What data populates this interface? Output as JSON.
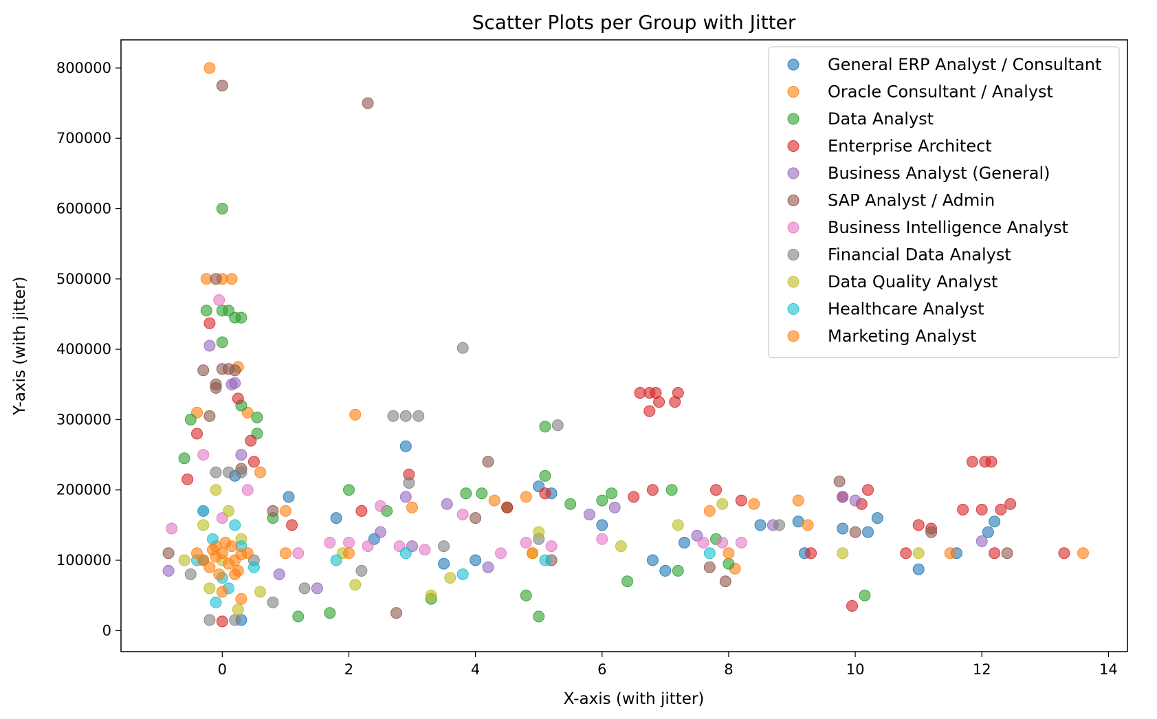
{
  "chart_data": {
    "type": "scatter",
    "title": "Scatter Plots per Group with Jitter",
    "xlabel": "X-axis (with jitter)",
    "ylabel": "Y-axis (with jitter)",
    "xlim": [
      -1.6,
      14.3
    ],
    "ylim": [
      -30000,
      840000
    ],
    "xticks": [
      0,
      2,
      4,
      6,
      8,
      10,
      12,
      14
    ],
    "yticks": [
      0,
      100000,
      200000,
      300000,
      400000,
      500000,
      600000,
      700000,
      800000
    ],
    "grid": false,
    "legend_position": "top-right",
    "marker_opacity": 0.6,
    "series": [
      {
        "name": "General ERP Analyst / Consultant",
        "color": "#1f77b4",
        "points": [
          [
            0.3,
            15000
          ],
          [
            1.05,
            190000
          ],
          [
            2.9,
            262000
          ],
          [
            4.0,
            100000
          ],
          [
            5.2,
            195000
          ],
          [
            6.0,
            150000
          ],
          [
            7.0,
            85000
          ],
          [
            8.5,
            150000
          ],
          [
            9.1,
            155000
          ],
          [
            9.8,
            145000
          ],
          [
            10.35,
            160000
          ],
          [
            11.0,
            87000
          ],
          [
            11.6,
            110000
          ],
          [
            12.1,
            140000
          ],
          [
            -0.3,
            100000
          ],
          [
            1.8,
            160000
          ],
          [
            3.5,
            95000
          ],
          [
            5.0,
            205000
          ],
          [
            6.8,
            100000
          ],
          [
            7.3,
            125000
          ],
          [
            9.2,
            110000
          ],
          [
            10.2,
            140000
          ],
          [
            12.2,
            155000
          ],
          [
            0.2,
            220000
          ],
          [
            2.4,
            130000
          ]
        ]
      },
      {
        "name": "Oracle Consultant / Analyst",
        "color": "#ff7f0e",
        "points": [
          [
            -0.2,
            800000
          ],
          [
            -0.25,
            500000
          ],
          [
            0.0,
            500000
          ],
          [
            0.15,
            500000
          ],
          [
            0.25,
            375000
          ],
          [
            -0.4,
            310000
          ],
          [
            0.4,
            310000
          ],
          [
            0.6,
            225000
          ],
          [
            2.1,
            307000
          ],
          [
            1.0,
            170000
          ],
          [
            4.8,
            190000
          ],
          [
            4.3,
            185000
          ],
          [
            7.7,
            170000
          ],
          [
            8.4,
            180000
          ],
          [
            9.1,
            185000
          ],
          [
            9.25,
            150000
          ],
          [
            13.6,
            110000
          ],
          [
            11.5,
            110000
          ],
          [
            8.1,
            88000
          ],
          [
            3.0,
            175000
          ],
          [
            -0.1,
            120000
          ],
          [
            0.2,
            80000
          ]
        ]
      },
      {
        "name": "Data Analyst",
        "color": "#2ca02c",
        "points": [
          [
            0.0,
            600000
          ],
          [
            -0.25,
            455000
          ],
          [
            0.0,
            455000
          ],
          [
            0.1,
            455000
          ],
          [
            0.2,
            445000
          ],
          [
            0.3,
            445000
          ],
          [
            0.0,
            410000
          ],
          [
            0.55,
            303000
          ],
          [
            0.55,
            280000
          ],
          [
            -0.6,
            245000
          ],
          [
            5.1,
            290000
          ],
          [
            5.1,
            220000
          ],
          [
            2.0,
            200000
          ],
          [
            3.85,
            195000
          ],
          [
            4.1,
            195000
          ],
          [
            6.15,
            195000
          ],
          [
            7.1,
            200000
          ],
          [
            6.4,
            70000
          ],
          [
            5.0,
            20000
          ],
          [
            10.15,
            50000
          ],
          [
            1.2,
            20000
          ],
          [
            1.7,
            25000
          ],
          [
            7.2,
            85000
          ],
          [
            8.0,
            95000
          ],
          [
            0.8,
            160000
          ],
          [
            2.6,
            170000
          ],
          [
            4.5,
            175000
          ],
          [
            5.5,
            180000
          ],
          [
            6.0,
            185000
          ],
          [
            -0.5,
            300000
          ],
          [
            0.3,
            320000
          ],
          [
            7.8,
            130000
          ],
          [
            3.3,
            45000
          ],
          [
            4.8,
            50000
          ]
        ]
      },
      {
        "name": "Enterprise Architect",
        "color": "#d62728",
        "points": [
          [
            -0.2,
            437000
          ],
          [
            -0.4,
            280000
          ],
          [
            0.25,
            330000
          ],
          [
            0.45,
            270000
          ],
          [
            6.6,
            338000
          ],
          [
            6.75,
            338000
          ],
          [
            6.85,
            338000
          ],
          [
            6.9,
            325000
          ],
          [
            6.75,
            312000
          ],
          [
            7.15,
            325000
          ],
          [
            7.2,
            338000
          ],
          [
            2.95,
            222000
          ],
          [
            9.95,
            35000
          ],
          [
            11.85,
            240000
          ],
          [
            12.05,
            240000
          ],
          [
            12.15,
            240000
          ],
          [
            11.7,
            172000
          ],
          [
            12.0,
            172000
          ],
          [
            12.3,
            172000
          ],
          [
            12.45,
            180000
          ],
          [
            13.3,
            110000
          ],
          [
            10.2,
            200000
          ],
          [
            9.8,
            190000
          ],
          [
            10.1,
            180000
          ],
          [
            11.0,
            150000
          ],
          [
            11.2,
            145000
          ],
          [
            6.5,
            190000
          ],
          [
            6.8,
            200000
          ],
          [
            7.8,
            200000
          ],
          [
            8.2,
            185000
          ],
          [
            4.5,
            175000
          ],
          [
            5.1,
            195000
          ],
          [
            -0.55,
            215000
          ],
          [
            0.5,
            240000
          ],
          [
            1.1,
            150000
          ],
          [
            2.2,
            170000
          ],
          [
            9.3,
            110000
          ],
          [
            10.8,
            110000
          ],
          [
            12.2,
            110000
          ],
          [
            0.0,
            13000
          ]
        ]
      },
      {
        "name": "Business Analyst (General)",
        "color": "#9467bd",
        "points": [
          [
            -0.2,
            405000
          ],
          [
            0.15,
            350000
          ],
          [
            0.2,
            352000
          ],
          [
            -0.85,
            85000
          ],
          [
            3.55,
            180000
          ],
          [
            2.9,
            190000
          ],
          [
            9.8,
            190000
          ],
          [
            10.0,
            185000
          ],
          [
            12.0,
            127000
          ],
          [
            8.7,
            150000
          ],
          [
            1.5,
            60000
          ],
          [
            0.9,
            80000
          ],
          [
            4.2,
            90000
          ],
          [
            5.8,
            165000
          ],
          [
            6.2,
            175000
          ],
          [
            2.5,
            140000
          ],
          [
            3.0,
            120000
          ],
          [
            -0.3,
            170000
          ],
          [
            0.3,
            250000
          ],
          [
            7.5,
            135000
          ]
        ]
      },
      {
        "name": "SAP Analyst / Admin",
        "color": "#8c564b",
        "points": [
          [
            0.0,
            775000
          ],
          [
            2.3,
            750000
          ],
          [
            -0.1,
            500000
          ],
          [
            -0.3,
            370000
          ],
          [
            0.0,
            372000
          ],
          [
            0.1,
            372000
          ],
          [
            0.2,
            370000
          ],
          [
            -0.1,
            350000
          ],
          [
            -0.1,
            345000
          ],
          [
            4.2,
            240000
          ],
          [
            9.75,
            212000
          ],
          [
            2.75,
            25000
          ],
          [
            7.95,
            70000
          ],
          [
            11.2,
            140000
          ],
          [
            -0.85,
            110000
          ],
          [
            0.8,
            170000
          ],
          [
            4.0,
            160000
          ],
          [
            5.2,
            100000
          ],
          [
            7.7,
            90000
          ],
          [
            10.0,
            140000
          ],
          [
            12.4,
            110000
          ],
          [
            -0.2,
            305000
          ],
          [
            0.3,
            230000
          ]
        ]
      },
      {
        "name": "Business Intelligence Analyst",
        "color": "#e377c2",
        "points": [
          [
            -0.05,
            470000
          ],
          [
            -0.8,
            145000
          ],
          [
            2.5,
            177000
          ],
          [
            1.7,
            125000
          ],
          [
            2.0,
            125000
          ],
          [
            2.3,
            120000
          ],
          [
            2.8,
            120000
          ],
          [
            3.2,
            115000
          ],
          [
            4.8,
            125000
          ],
          [
            5.2,
            120000
          ],
          [
            7.6,
            125000
          ],
          [
            7.9,
            125000
          ],
          [
            8.2,
            125000
          ],
          [
            3.8,
            165000
          ],
          [
            0.4,
            200000
          ],
          [
            -0.3,
            250000
          ],
          [
            1.2,
            110000
          ],
          [
            6.0,
            130000
          ],
          [
            4.4,
            110000
          ],
          [
            0.0,
            160000
          ]
        ]
      },
      {
        "name": "Financial Data Analyst",
        "color": "#7f7f7f",
        "points": [
          [
            3.8,
            402000
          ],
          [
            2.7,
            305000
          ],
          [
            2.9,
            305000
          ],
          [
            3.1,
            305000
          ],
          [
            5.3,
            292000
          ],
          [
            2.95,
            210000
          ],
          [
            -0.1,
            225000
          ],
          [
            0.1,
            225000
          ],
          [
            0.3,
            225000
          ],
          [
            -0.2,
            15000
          ],
          [
            0.2,
            15000
          ],
          [
            0.8,
            40000
          ],
          [
            1.3,
            60000
          ],
          [
            3.5,
            120000
          ],
          [
            5.0,
            130000
          ],
          [
            8.8,
            150000
          ],
          [
            -0.5,
            80000
          ],
          [
            0.5,
            100000
          ],
          [
            2.2,
            85000
          ]
        ]
      },
      {
        "name": "Data Quality Analyst",
        "color": "#bcbd22",
        "points": [
          [
            -0.1,
            200000
          ],
          [
            0.1,
            170000
          ],
          [
            -0.3,
            150000
          ],
          [
            0.3,
            130000
          ],
          [
            0.0,
            100000
          ],
          [
            -0.2,
            60000
          ],
          [
            0.25,
            30000
          ],
          [
            1.9,
            110000
          ],
          [
            3.3,
            50000
          ],
          [
            4.9,
            110000
          ],
          [
            5.0,
            140000
          ],
          [
            6.3,
            120000
          ],
          [
            7.2,
            150000
          ],
          [
            7.9,
            180000
          ],
          [
            9.8,
            110000
          ],
          [
            11.0,
            110000
          ],
          [
            2.1,
            65000
          ],
          [
            0.6,
            55000
          ],
          [
            -0.6,
            100000
          ],
          [
            3.6,
            75000
          ]
        ]
      },
      {
        "name": "Healthcare Analyst",
        "color": "#17becf",
        "points": [
          [
            -0.3,
            170000
          ],
          [
            0.2,
            150000
          ],
          [
            0.1,
            60000
          ],
          [
            -0.1,
            40000
          ],
          [
            0.3,
            120000
          ],
          [
            0.5,
            90000
          ],
          [
            -0.4,
            100000
          ],
          [
            1.8,
            100000
          ],
          [
            2.9,
            110000
          ],
          [
            3.8,
            80000
          ],
          [
            5.1,
            100000
          ],
          [
            7.7,
            110000
          ],
          [
            0.0,
            75000
          ],
          [
            -0.15,
            130000
          ]
        ]
      },
      {
        "name": "Marketing Analyst",
        "color": "#ff7f0e",
        "points": [
          [
            -0.3,
            100000
          ],
          [
            -0.1,
            105000
          ],
          [
            0.0,
            110000
          ],
          [
            0.1,
            95000
          ],
          [
            0.2,
            100000
          ],
          [
            0.3,
            108000
          ],
          [
            -0.2,
            90000
          ],
          [
            0.15,
            120000
          ],
          [
            -0.05,
            80000
          ],
          [
            0.4,
            110000
          ],
          [
            -0.4,
            110000
          ],
          [
            0.25,
            85000
          ],
          [
            0.05,
            125000
          ],
          [
            -0.15,
            115000
          ],
          [
            1.0,
            110000
          ],
          [
            2.0,
            110000
          ],
          [
            4.9,
            110000
          ],
          [
            8.0,
            110000
          ],
          [
            0.0,
            55000
          ],
          [
            0.3,
            45000
          ]
        ]
      }
    ]
  }
}
